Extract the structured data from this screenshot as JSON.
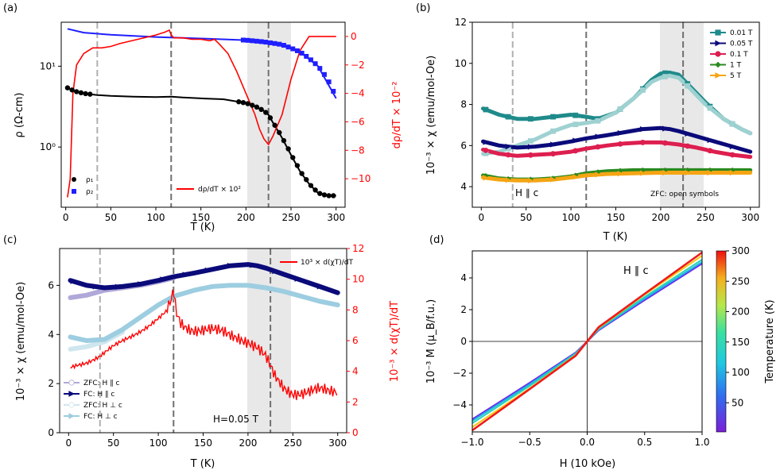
{
  "chart_data": [
    {
      "panel": "(a)",
      "type": "line",
      "xlabel": "T (K)",
      "ylabel": "ρ (Ω-cm)",
      "ylabel_right": "dρ/dT × 10⁻²",
      "xlim": [
        -5,
        310
      ],
      "ylim_log": [
        0.18,
        35
      ],
      "ylim_right": [
        -12,
        1
      ],
      "x_ticks": [
        "0",
        "50",
        "100",
        "150",
        "200",
        "250",
        "300"
      ],
      "y_ticks_log": [
        "10⁰",
        "10¹"
      ],
      "y_ticks_right": [
        "0",
        "−2",
        "−4",
        "−6",
        "−8",
        "−10"
      ],
      "legend": [
        {
          "label": "ρ₁",
          "color": "#000000",
          "marker": "circle"
        },
        {
          "label": "ρ₂",
          "color": "#1f1fff",
          "marker": "square"
        }
      ],
      "legend_right": [
        {
          "label": "dρ/dT × 10²",
          "color": "#ff0000"
        }
      ],
      "vlines": [
        35,
        117,
        225
      ],
      "shaded_band": [
        200,
        250
      ],
      "series": [
        {
          "name": "ρ₁",
          "color": "#000000",
          "x": [
            2,
            10,
            20,
            35,
            50,
            75,
            100,
            117,
            130,
            150,
            175,
            200,
            210,
            220,
            225,
            230,
            240,
            250,
            260,
            270,
            280,
            290,
            300
          ],
          "y": [
            5.4,
            4.9,
            4.6,
            4.4,
            4.3,
            4.2,
            4.15,
            4.2,
            4.1,
            4.0,
            3.9,
            3.5,
            3.2,
            2.8,
            2.5,
            2.0,
            1.3,
            0.8,
            0.5,
            0.35,
            0.27,
            0.25,
            0.25
          ]
        },
        {
          "name": "ρ₂",
          "color": "#1f1fff",
          "x": [
            2,
            20,
            50,
            100,
            150,
            200,
            220,
            240,
            260,
            280,
            300
          ],
          "y": [
            29,
            26,
            24.5,
            23,
            22,
            21,
            20,
            18.5,
            15,
            10,
            4
          ]
        },
        {
          "name": "dρ/dT × 10²",
          "color": "#ff0000",
          "axis": "right",
          "x": [
            2,
            5,
            8,
            12,
            20,
            30,
            40,
            50,
            60,
            80,
            100,
            110,
            115,
            117,
            120,
            130,
            140,
            150,
            160,
            165,
            170,
            180,
            190,
            200,
            210,
            215,
            220,
            225,
            230,
            240,
            250,
            260,
            270,
            280,
            290,
            300
          ],
          "y": [
            -11.3,
            -10,
            -4,
            -2,
            -1.2,
            -0.8,
            -0.8,
            -0.7,
            -0.5,
            -0.2,
            0.1,
            0.3,
            0.45,
            0.1,
            -0.1,
            -0.1,
            -0.2,
            -0.2,
            -0.3,
            -0.2,
            -0.5,
            -1.2,
            -2.5,
            -4,
            -5.5,
            -6.5,
            -7.2,
            -7.6,
            -7,
            -5.5,
            -3,
            -1,
            0,
            0,
            0,
            0
          ]
        }
      ]
    },
    {
      "panel": "(b)",
      "type": "line",
      "xlabel": "T (K)",
      "ylabel": "10⁻³ × χ (emu/mol-Oe)",
      "xlim": [
        -10,
        310
      ],
      "ylim": [
        3,
        12
      ],
      "x_ticks": [
        "0",
        "50",
        "100",
        "150",
        "200",
        "250",
        "300"
      ],
      "y_ticks": [
        "4",
        "6",
        "8",
        "10",
        "12"
      ],
      "annotations": [
        "H ∥ c",
        "ZFC: open symbols"
      ],
      "vlines": [
        35,
        117,
        225
      ],
      "shaded_band": [
        200,
        250
      ],
      "legend": [
        {
          "label": "0.01 T",
          "color": "#1f8a8a",
          "marker": "square"
        },
        {
          "label": "0.05 T",
          "color": "#0a0a7a",
          "marker": "triangle"
        },
        {
          "label": "0.1 T",
          "color": "#dd1f4f",
          "marker": "circle"
        },
        {
          "label": "1 T",
          "color": "#2a8a1f",
          "marker": "diamond"
        },
        {
          "label": "5 T",
          "color": "#f5a514",
          "marker": "triangle"
        }
      ],
      "series": [
        {
          "name": "0.01 T",
          "color": "#1f8a8a",
          "x": [
            2,
            20,
            40,
            60,
            80,
            100,
            117,
            130,
            150,
            170,
            190,
            200,
            210,
            220,
            230,
            250,
            270,
            290,
            300
          ],
          "y": [
            7.8,
            7.5,
            7.3,
            7.3,
            7.4,
            7.5,
            7.4,
            7.3,
            7.6,
            8.3,
            9.2,
            9.5,
            9.55,
            9.45,
            9.0,
            8.1,
            7.3,
            6.8,
            6.6
          ]
        },
        {
          "name": "0.01 T (ZFC)",
          "color": "#9fd1d1",
          "x": [
            2,
            20,
            40,
            60,
            80,
            100,
            117,
            130,
            150,
            170,
            190,
            200,
            210,
            220,
            230,
            250,
            270,
            290,
            300
          ],
          "y": [
            5.6,
            5.7,
            6.0,
            6.3,
            6.7,
            7.0,
            7.1,
            7.2,
            7.6,
            8.3,
            9.1,
            9.3,
            9.4,
            9.3,
            8.9,
            8.0,
            7.3,
            6.8,
            6.6
          ]
        },
        {
          "name": "0.05 T",
          "color": "#0a0a7a",
          "x": [
            2,
            20,
            40,
            60,
            80,
            100,
            117,
            140,
            160,
            180,
            200,
            210,
            220,
            240,
            260,
            280,
            300
          ],
          "y": [
            6.2,
            6.0,
            5.9,
            5.95,
            6.05,
            6.2,
            6.35,
            6.5,
            6.65,
            6.8,
            6.85,
            6.8,
            6.7,
            6.45,
            6.2,
            5.95,
            5.7
          ]
        },
        {
          "name": "0.1 T",
          "color": "#dd1f4f",
          "x": [
            2,
            20,
            40,
            60,
            80,
            100,
            117,
            140,
            160,
            180,
            200,
            220,
            240,
            260,
            280,
            300
          ],
          "y": [
            5.8,
            5.6,
            5.5,
            5.55,
            5.6,
            5.7,
            5.85,
            6.0,
            6.1,
            6.15,
            6.15,
            6.05,
            5.9,
            5.7,
            5.55,
            5.45
          ]
        },
        {
          "name": "1 T",
          "color": "#2a8a1f",
          "x": [
            2,
            20,
            40,
            60,
            80,
            100,
            117,
            140,
            170,
            200,
            230,
            260,
            300
          ],
          "y": [
            4.55,
            4.4,
            4.35,
            4.35,
            4.4,
            4.5,
            4.65,
            4.75,
            4.8,
            4.8,
            4.8,
            4.8,
            4.8
          ]
        },
        {
          "name": "5 T",
          "color": "#f5a514",
          "x": [
            2,
            20,
            40,
            60,
            80,
            100,
            117,
            140,
            170,
            200,
            230,
            260,
            300
          ],
          "y": [
            4.45,
            4.35,
            4.3,
            4.3,
            4.35,
            4.45,
            4.55,
            4.62,
            4.65,
            4.68,
            4.68,
            4.68,
            4.68
          ]
        }
      ]
    },
    {
      "panel": "(c)",
      "type": "line",
      "xlabel": "T (K)",
      "ylabel": "10⁻³ × χ (emu/mol-Oe)",
      "ylabel_right": "10⁻³ × d(χT)/dT",
      "xlim": [
        -10,
        310
      ],
      "ylim": [
        0,
        7.5
      ],
      "ylim_right": [
        0,
        12
      ],
      "x_ticks": [
        "0",
        "50",
        "100",
        "150",
        "200",
        "250",
        "300"
      ],
      "y_ticks": [
        "0",
        "2",
        "4",
        "6"
      ],
      "y_ticks_right": [
        "0",
        "2",
        "4",
        "6",
        "8",
        "10",
        "12"
      ],
      "annotations": [
        "H=0.05 T"
      ],
      "vlines": [
        35,
        117,
        225
      ],
      "shaded_band": [
        200,
        250
      ],
      "legend": [
        {
          "label": "ZFC: H ∥ c",
          "color": "#b0a8d8",
          "marker": "circle"
        },
        {
          "label": "FC: H ∥ c",
          "color": "#0a0a7a",
          "marker": "triangle"
        },
        {
          "label": "ZFC: H ⊥ c",
          "color": "#cfe6ee",
          "marker": "circle"
        },
        {
          "label": "FC: H ⊥ c",
          "color": "#9dcde0",
          "marker": "triangle"
        }
      ],
      "legend_right": [
        {
          "label": "10³ × d(χT)/dT",
          "color": "#ff0000"
        }
      ],
      "series": [
        {
          "name": "FC: H ∥ c",
          "color": "#0a0a7a",
          "x": [
            2,
            20,
            40,
            60,
            80,
            100,
            117,
            140,
            160,
            180,
            200,
            210,
            220,
            240,
            260,
            280,
            300
          ],
          "y": [
            6.2,
            6.0,
            5.9,
            5.95,
            6.05,
            6.2,
            6.35,
            6.5,
            6.65,
            6.8,
            6.85,
            6.8,
            6.7,
            6.45,
            6.2,
            5.95,
            5.7
          ]
        },
        {
          "name": "ZFC: H ∥ c",
          "color": "#b0a8d8",
          "x": [
            2,
            20,
            40,
            60,
            80,
            100,
            117
          ],
          "y": [
            5.5,
            5.6,
            5.8,
            5.9,
            6.0,
            6.15,
            6.3
          ]
        },
        {
          "name": "FC: H ⊥ c",
          "color": "#9dcde0",
          "x": [
            2,
            20,
            40,
            60,
            80,
            100,
            117,
            140,
            160,
            180,
            200,
            220,
            240,
            260,
            280,
            300
          ],
          "y": [
            3.9,
            3.75,
            3.8,
            4.2,
            4.7,
            5.2,
            5.55,
            5.8,
            5.95,
            6.0,
            6.0,
            5.9,
            5.75,
            5.55,
            5.35,
            5.2
          ]
        },
        {
          "name": "ZFC: H ⊥ c",
          "color": "#cfe6ee",
          "x": [
            2,
            20,
            40,
            60
          ],
          "y": [
            3.4,
            3.5,
            3.7,
            4.1
          ]
        },
        {
          "name": "10³ × d(χT)/dT",
          "color": "#ff0000",
          "axis": "right",
          "x": [
            2,
            10,
            20,
            35,
            50,
            70,
            90,
            100,
            110,
            115,
            117,
            120,
            125,
            130,
            140,
            150,
            160,
            170,
            180,
            190,
            200,
            210,
            220,
            225,
            230,
            240,
            250,
            260,
            270,
            280,
            290,
            300
          ],
          "y": [
            4.2,
            4.4,
            4.6,
            5.0,
            5.6,
            6.3,
            7.0,
            7.4,
            7.9,
            8.6,
            9.3,
            7.8,
            7.2,
            7.0,
            6.8,
            6.7,
            6.6,
            6.5,
            6.4,
            6.3,
            6.0,
            5.5,
            4.8,
            4.2,
            3.6,
            3.0,
            2.7,
            2.6,
            2.6,
            2.7,
            2.7,
            2.8
          ]
        }
      ]
    },
    {
      "panel": "(d)",
      "type": "line",
      "xlabel": "H (10 kOe)",
      "ylabel": "10⁻³ M (μ_B/f.u.)",
      "xlim": [
        -1,
        1
      ],
      "ylim": [
        -5.7,
        5.7
      ],
      "x_ticks": [
        "−1.0",
        "−0.5",
        "0.0",
        "0.5",
        "1.0"
      ],
      "y_ticks": [
        "−4",
        "−2",
        "0",
        "2",
        "4"
      ],
      "annotations": [
        "H ∥ c"
      ],
      "colorbar": {
        "label": "Temperature (K)",
        "ticks": [
          "50",
          "100",
          "150",
          "200",
          "250",
          "300"
        ],
        "range": [
          2,
          300
        ]
      },
      "series": [
        {
          "name": "2 K",
          "color": "#6a2cf0",
          "x": [
            -1,
            -0.5,
            -0.1,
            0,
            0.1,
            0.5,
            1
          ],
          "y": [
            -4.9,
            -2.6,
            -0.7,
            0,
            0.7,
            2.6,
            4.9
          ]
        },
        {
          "name": "50 K",
          "color": "#1fb2e0",
          "x": [
            -1,
            -0.5,
            -0.1,
            0,
            0.1,
            0.5,
            1
          ],
          "y": [
            -5.0,
            -2.7,
            -0.75,
            0,
            0.75,
            2.7,
            5.0
          ]
        },
        {
          "name": "100 K",
          "color": "#28d3b8",
          "x": [
            -1,
            -0.5,
            -0.1,
            0,
            0.1,
            0.5,
            1
          ],
          "y": [
            -5.15,
            -2.8,
            -0.8,
            0,
            0.8,
            2.8,
            5.15
          ]
        },
        {
          "name": "200 K",
          "color": "#f5c814",
          "x": [
            -1,
            -0.5,
            -0.1,
            0,
            0.1,
            0.5,
            1
          ],
          "y": [
            -5.4,
            -2.95,
            -0.85,
            0,
            0.85,
            2.95,
            5.4
          ]
        },
        {
          "name": "300 K",
          "color": "#ee1a1a",
          "x": [
            -1,
            -0.5,
            -0.1,
            0,
            0.1,
            0.5,
            1
          ],
          "y": [
            -5.6,
            -3.0,
            -0.9,
            0,
            0.9,
            3.0,
            5.6
          ]
        }
      ]
    }
  ]
}
